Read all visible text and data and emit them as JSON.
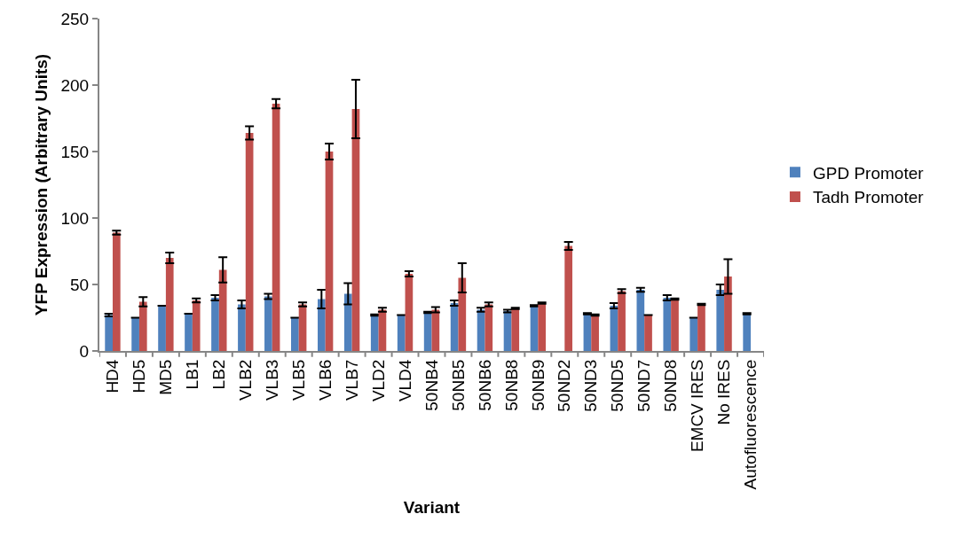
{
  "chart_data": {
    "type": "bar",
    "xlabel": "Variant",
    "ylabel": "YFP Expression (Arbitrary Units)",
    "categories": [
      "HD4",
      "HD5",
      "MD5",
      "LB1",
      "LB2",
      "VLB2",
      "VLB3",
      "VLB5",
      "VLB6",
      "VLB7",
      "VLD2",
      "VLD4",
      "50NB4",
      "50NB5",
      "50NB6",
      "50NB8",
      "50NB9",
      "50ND2",
      "50ND3",
      "50ND5",
      "50ND7",
      "50ND8",
      "EMCV IRES",
      "No IRES",
      "Autofluorescence"
    ],
    "series": [
      {
        "name": "GPD Promoter",
        "color": "#4f81bd",
        "values": [
          27,
          25,
          34,
          28,
          40,
          35,
          41,
          25,
          39,
          43,
          27,
          27,
          29,
          36,
          31,
          30,
          34,
          null,
          28,
          34,
          46,
          40,
          25,
          46,
          28
        ],
        "errors": [
          1,
          0,
          0,
          0,
          2,
          3,
          2,
          0,
          7,
          8,
          0.5,
          0,
          0.5,
          2,
          1.5,
          1,
          0.5,
          null,
          0.5,
          2,
          1.5,
          2,
          0,
          4,
          0.5
        ]
      },
      {
        "name": "Tadh Promoter",
        "color": "#c0504d",
        "values": [
          89,
          37,
          70,
          38,
          61,
          164,
          186,
          35,
          150,
          182,
          31,
          58,
          31,
          55,
          35,
          32,
          36,
          79,
          27,
          45,
          27,
          39,
          35,
          56,
          null
        ],
        "errors": [
          1.5,
          3.5,
          4,
          1.5,
          9.5,
          5,
          3.5,
          1.5,
          6,
          22,
          1.5,
          2,
          2,
          11,
          1.5,
          0.5,
          0.5,
          3,
          0.5,
          1.5,
          0,
          0.5,
          0.5,
          13,
          null
        ]
      }
    ],
    "ylim": [
      0,
      250
    ],
    "yticks": [
      0,
      50,
      100,
      150,
      200,
      250
    ],
    "grid": false,
    "legend": "right"
  }
}
